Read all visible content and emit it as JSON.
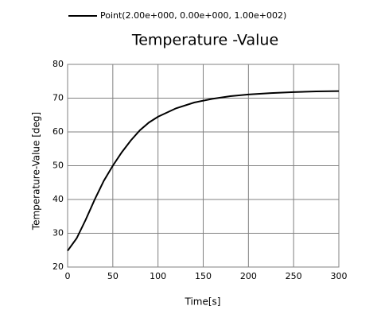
{
  "chart_data": {
    "type": "line",
    "title": "Temperature -Value",
    "xlabel": "Time[s]",
    "ylabel": "Temperature-Value [deg]",
    "x": [
      0,
      10,
      20,
      30,
      40,
      50,
      60,
      70,
      80,
      90,
      100,
      120,
      140,
      160,
      180,
      200,
      225,
      250,
      275,
      300
    ],
    "series": [
      {
        "name": "Point(2.00e+000, 0.00e+000, 1.00e+002)",
        "color": "#000000",
        "values": [
          24.8,
          28.5,
          34,
          40,
          45.5,
          50,
          54,
          57.5,
          60.5,
          62.8,
          64.5,
          67,
          68.7,
          69.8,
          70.6,
          71.1,
          71.5,
          71.8,
          72,
          72.1
        ]
      }
    ],
    "xlim": [
      0,
      300
    ],
    "xticks": [
      0,
      50,
      100,
      150,
      200,
      250,
      300
    ],
    "ylim": [
      20,
      80
    ],
    "yticks": [
      20,
      30,
      40,
      50,
      60,
      70,
      80
    ],
    "grid": true,
    "legend": "top-left"
  }
}
